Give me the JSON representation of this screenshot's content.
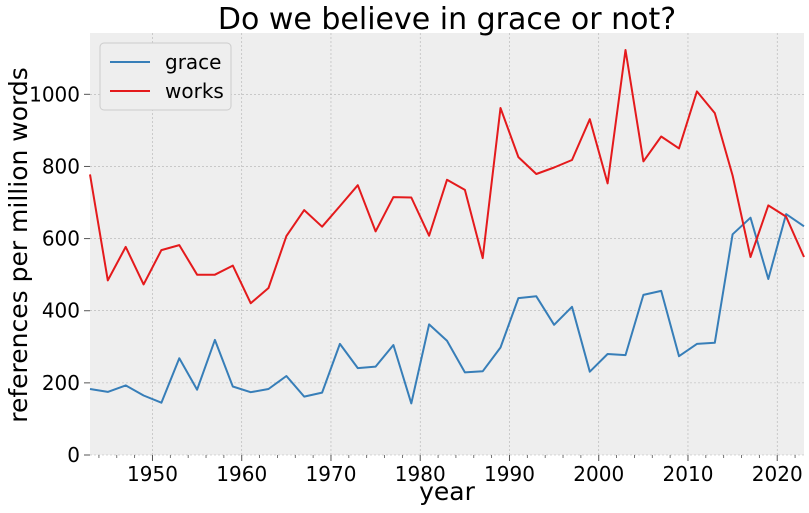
{
  "chart_data": {
    "type": "line",
    "title": "Do we believe in grace or not?",
    "xlabel": "year",
    "ylabel": "references per million words",
    "xlim": [
      1943,
      2023
    ],
    "ylim": [
      0,
      1170
    ],
    "xticks": [
      1950,
      1960,
      1970,
      1980,
      1990,
      2000,
      2010,
      2020
    ],
    "yticks": [
      0,
      200,
      400,
      600,
      800,
      1000
    ],
    "grid": true,
    "legend_position": "top-left",
    "series": [
      {
        "name": "grace",
        "color": "#377eb8",
        "x": [
          1943,
          1945,
          1947,
          1949,
          1951,
          1953,
          1955,
          1957,
          1959,
          1961,
          1963,
          1965,
          1967,
          1969,
          1971,
          1973,
          1975,
          1977,
          1979,
          1981,
          1983,
          1985,
          1987,
          1989,
          1991,
          1993,
          1995,
          1997,
          1999,
          2001,
          2003,
          2005,
          2007,
          2009,
          2011,
          2013,
          2015,
          2017,
          2019,
          2021,
          2023
        ],
        "y": [
          183,
          175,
          193,
          165,
          145,
          268,
          181,
          319,
          190,
          174,
          183,
          219,
          162,
          173,
          308,
          241,
          245,
          305,
          143,
          362,
          317,
          229,
          232,
          298,
          435,
          440,
          361,
          411,
          231,
          280,
          277,
          444,
          455,
          274,
          308,
          311,
          612,
          658,
          488,
          668,
          634
        ]
      },
      {
        "name": "works",
        "color": "#e41a1c",
        "x": [
          1943,
          1945,
          1947,
          1949,
          1951,
          1953,
          1955,
          1957,
          1959,
          1961,
          1963,
          1965,
          1967,
          1969,
          1971,
          1973,
          1975,
          1977,
          1979,
          1981,
          1983,
          1985,
          1987,
          1989,
          1991,
          1993,
          1995,
          1997,
          1999,
          2001,
          2003,
          2005,
          2007,
          2009,
          2011,
          2013,
          2015,
          2017,
          2019,
          2021,
          2023
        ],
        "y": [
          778,
          484,
          577,
          473,
          568,
          582,
          500,
          500,
          525,
          421,
          463,
          607,
          679,
          633,
          690,
          748,
          620,
          715,
          714,
          608,
          763,
          735,
          546,
          962,
          826,
          779,
          797,
          818,
          931,
          753,
          1123,
          814,
          883,
          850,
          1008,
          948,
          775,
          549,
          692,
          661,
          549
        ]
      }
    ]
  }
}
